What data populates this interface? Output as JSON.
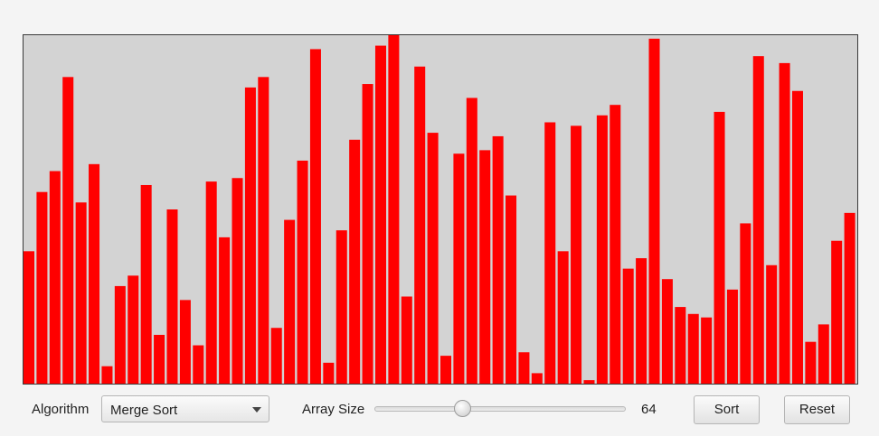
{
  "visualizer": {
    "bar_color": "#ff0000",
    "background_color": "#d3d3d3",
    "max_value": 100,
    "values": [
      38,
      55,
      61,
      88,
      52,
      63,
      5,
      28,
      31,
      57,
      14,
      50,
      24,
      11,
      58,
      42,
      59,
      85,
      88,
      16,
      47,
      64,
      96,
      6,
      44,
      70,
      86,
      97,
      100,
      25,
      91,
      72,
      8,
      66,
      82,
      67,
      71,
      54,
      9,
      3,
      75,
      38,
      74,
      1,
      77,
      80,
      33,
      36,
      99,
      30,
      22,
      20,
      19,
      78,
      27,
      46,
      94,
      34,
      92,
      84,
      12,
      17,
      41,
      49
    ]
  },
  "controls": {
    "algorithm_label": "Algorithm",
    "algorithm_selected": "Merge Sort",
    "array_size_label": "Array Size",
    "array_size_value": "64",
    "array_size_fraction": 0.34,
    "sort_label": "Sort",
    "reset_label": "Reset"
  }
}
